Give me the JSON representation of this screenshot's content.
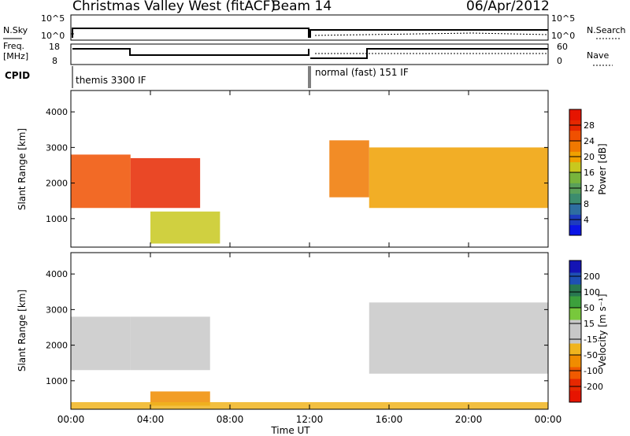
{
  "header": {
    "title": "Christmas Valley West (fitACF)",
    "beam": "Beam 14",
    "date": "06/Apr/2012"
  },
  "top_panels": {
    "nsky_label": "N.Sky",
    "nsearch_label": "N.Search",
    "nsky_ticks": [
      "10^5",
      "10^0"
    ],
    "nsky_ticks_right": [
      "10^5",
      "10^0"
    ],
    "freq_label": [
      "Freq.",
      "[MHz]"
    ],
    "freq_ticks": [
      "18",
      "8"
    ],
    "nave_label": "Nave",
    "nave_ticks": [
      "60",
      "0"
    ],
    "cpid_label": "CPID",
    "cpid_segments": [
      "themis 3300 IF",
      "normal (fast) 151 IF"
    ]
  },
  "colors": {
    "power_scale": [
      "#0a14e6",
      "#1e3cbe",
      "#2e6ea0",
      "#3c8c6e",
      "#5aa05a",
      "#78b43c",
      "#c8c81e",
      "#f0a000",
      "#f07800",
      "#f05000",
      "#e62800",
      "#e61400"
    ],
    "velocity_scale": [
      "#1414b4",
      "#1e50b4",
      "#287850",
      "#3ca03c",
      "#78c83c",
      "#c8c8c8",
      "#c8c8c8",
      "#f0b41e",
      "#f08c00",
      "#f05a00",
      "#e62800",
      "#e61400"
    ]
  },
  "chart_data": [
    {
      "type": "heatmap",
      "ylabel": "Slant Range [km]",
      "xlabel": "",
      "x_ticks": [
        "00:00",
        "04:00",
        "08:00",
        "12:00",
        "16:00",
        "20:00",
        "00:00"
      ],
      "y_ticks": [
        1000,
        2000,
        3000,
        4000
      ],
      "ylim": [
        200,
        4600
      ],
      "colorbar": {
        "label": "Power [dB]",
        "ticks": [
          4,
          8,
          12,
          16,
          20,
          24,
          28
        ],
        "range": [
          0,
          30
        ]
      },
      "regions": [
        {
          "t": [
            0.0,
            3.0
          ],
          "range": [
            1300,
            2800
          ],
          "level": 24
        },
        {
          "t": [
            3.0,
            6.5
          ],
          "range": [
            1300,
            2700
          ],
          "level": 26
        },
        {
          "t": [
            4.0,
            7.5
          ],
          "range": [
            300,
            1200
          ],
          "level": 16
        },
        {
          "t": [
            13.0,
            15.0
          ],
          "range": [
            1600,
            3200
          ],
          "level": 22
        },
        {
          "t": [
            15.0,
            24.0
          ],
          "range": [
            1300,
            3000
          ],
          "level": 20
        }
      ]
    },
    {
      "type": "heatmap",
      "ylabel": "Slant Range [km]",
      "xlabel": "Time UT",
      "x_ticks": [
        "00:00",
        "04:00",
        "08:00",
        "12:00",
        "16:00",
        "20:00",
        "00:00"
      ],
      "y_ticks": [
        1000,
        2000,
        3000,
        4000
      ],
      "ylim": [
        200,
        4600
      ],
      "colorbar": {
        "label": "Velocity [m s⁻¹]",
        "ticks": [
          200,
          100,
          50,
          15,
          -15,
          -50,
          -100,
          -200
        ]
      },
      "regions": [
        {
          "t": [
            0.0,
            3.0
          ],
          "range": [
            1300,
            2800
          ],
          "velocity": 0
        },
        {
          "t": [
            3.0,
            7.0
          ],
          "range": [
            1300,
            2800
          ],
          "velocity": 0
        },
        {
          "t": [
            4.0,
            7.0
          ],
          "range": [
            300,
            700
          ],
          "velocity": -60
        },
        {
          "t": [
            15.0,
            24.0
          ],
          "range": [
            1200,
            3200
          ],
          "velocity": 0
        },
        {
          "t": [
            0.0,
            24.0
          ],
          "range": [
            200,
            400
          ],
          "velocity": -40
        }
      ]
    }
  ]
}
